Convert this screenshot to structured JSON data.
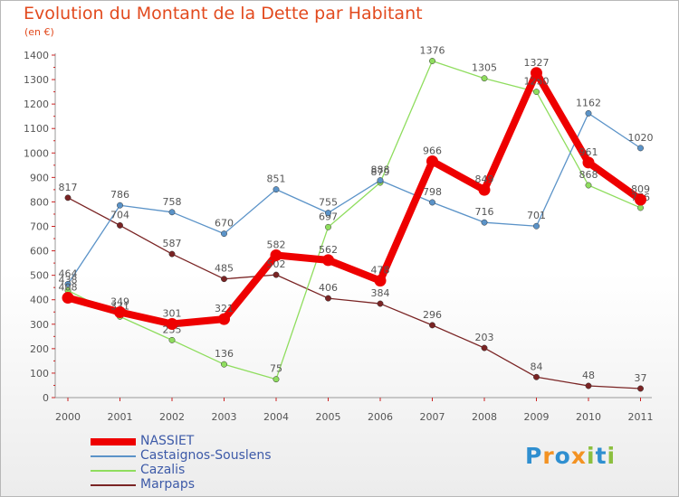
{
  "title": "Evolution du Montant de la Dette par Habitant",
  "unit_label": "(en €)",
  "brand": {
    "letters": [
      "P",
      "r",
      "o",
      "x",
      "i",
      "t",
      "i"
    ],
    "colors": [
      "#2f8fd0",
      "#f39222",
      "#2f8fd0",
      "#f39222",
      "#8cbf3f",
      "#2f8fd0",
      "#8cbf3f"
    ]
  },
  "chart_data": {
    "type": "line",
    "categories": [
      "2000",
      "2001",
      "2002",
      "2003",
      "2004",
      "2005",
      "2006",
      "2007",
      "2008",
      "2009",
      "2010",
      "2011"
    ],
    "ylim": [
      0,
      1400
    ],
    "yticks": [
      0,
      100,
      200,
      300,
      400,
      500,
      600,
      700,
      800,
      900,
      1000,
      1100,
      1200,
      1300,
      1400
    ],
    "grid": false,
    "legend_position": "bottom-left",
    "series": [
      {
        "name": "Marpaps",
        "color": "#7a2424",
        "values": [
          817,
          704,
          587,
          485,
          502,
          406,
          384,
          296,
          203,
          84,
          48,
          37
        ]
      },
      {
        "name": "Cazalis",
        "color": "#8fdd5e",
        "values": [
          438,
          331,
          235,
          136,
          75,
          697,
          879,
          1376,
          1305,
          1250,
          868,
          776
        ]
      },
      {
        "name": "Castaignos-Souslens",
        "color": "#5b93c8",
        "values": [
          464,
          786,
          758,
          670,
          851,
          755,
          888,
          798,
          716,
          701,
          1162,
          1020
        ]
      },
      {
        "name": "NASSIET",
        "color": "#ee0000",
        "values": [
          408,
          349,
          301,
          321,
          582,
          562,
          478,
          966,
          849,
          1327,
          961,
          809
        ]
      }
    ],
    "legend_order": [
      "NASSIET",
      "Castaignos-Souslens",
      "Cazalis",
      "Marpaps"
    ]
  }
}
